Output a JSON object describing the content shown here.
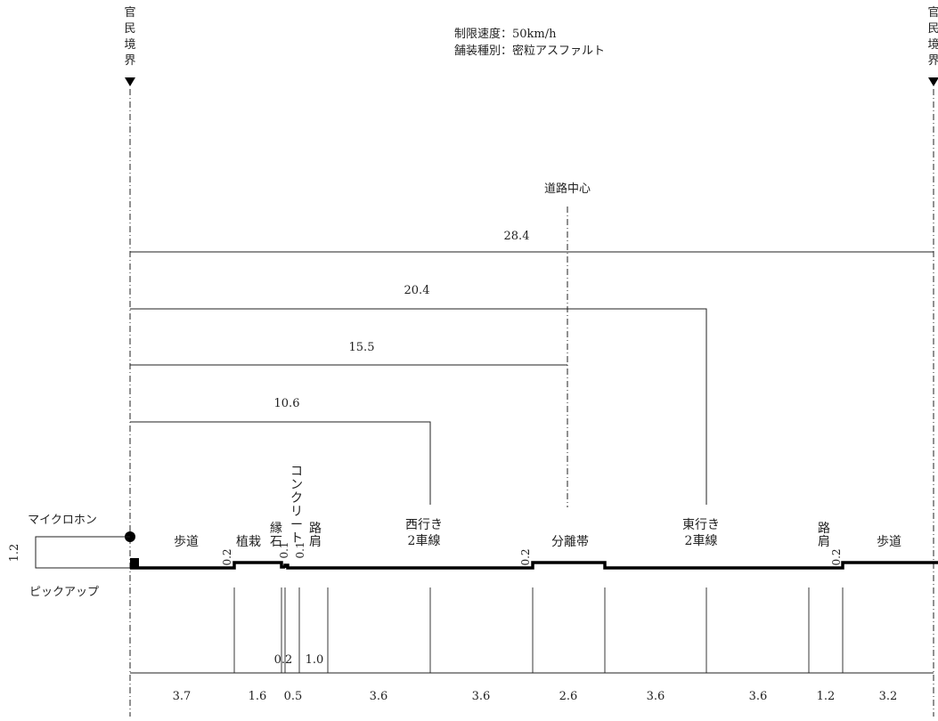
{
  "boundary_label": "官民境界",
  "speed_limit": "制限速度：50km/h",
  "pavement_type": "舗装種別：密粒アスファルト",
  "road_center": "道路中心",
  "microphone": "マイクロホン",
  "pickup": "ピックアップ",
  "mic_height": "1.2",
  "distances": [
    "28.4",
    "20.4",
    "15.5",
    "10.6"
  ],
  "elements": {
    "sidewalk": "歩道",
    "planting": "植栽",
    "curb": "縁石",
    "concrete": "コンクリート",
    "shoulder": "路肩",
    "westbound": "西行き\n2車線",
    "median": "分離帯",
    "eastbound": "東行き\n2車線"
  },
  "step_heights": [
    "0.2",
    "0.1",
    "0.1",
    "0.2",
    "0.2"
  ],
  "inner_dims": [
    "0.2",
    "1.0"
  ],
  "widths": [
    "3.7",
    "1.6",
    "0.5",
    "3.6",
    "3.6",
    "2.6",
    "3.6",
    "3.6",
    "1.2",
    "3.2"
  ]
}
